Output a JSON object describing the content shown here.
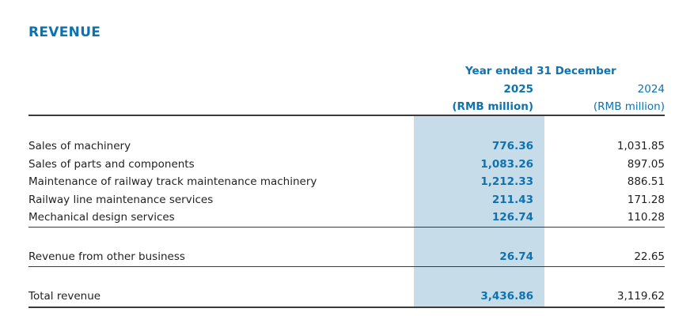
{
  "section": {
    "title": "REVENUE"
  },
  "header": {
    "period": "Year ended 31 December",
    "year_current": "2025",
    "year_prior": "2024",
    "unit_current": "(RMB million)",
    "unit_prior": "(RMB million)"
  },
  "rows": [
    {
      "label": "Sales of machinery",
      "v2025": "776.36",
      "v2024": "1,031.85"
    },
    {
      "label": "Sales of parts and components",
      "v2025": "1,083.26",
      "v2024": "897.05"
    },
    {
      "label": "Maintenance of railway track maintenance machinery",
      "v2025": "1,212.33",
      "v2024": "886.51"
    },
    {
      "label": "Railway line maintenance services",
      "v2025": "211.43",
      "v2024": "171.28"
    },
    {
      "label": "Mechanical design services",
      "v2025": "126.74",
      "v2024": "110.28"
    }
  ],
  "other": {
    "label": "Revenue from other business",
    "v2025": "26.74",
    "v2024": "22.65"
  },
  "total": {
    "label": "Total revenue",
    "v2025": "3,436.86",
    "v2024": "3,119.62"
  },
  "colors": {
    "accent": "#0e72b0",
    "highlight_column": "#c6dce9",
    "text": "#222222",
    "rule": "#3a3a3a"
  }
}
